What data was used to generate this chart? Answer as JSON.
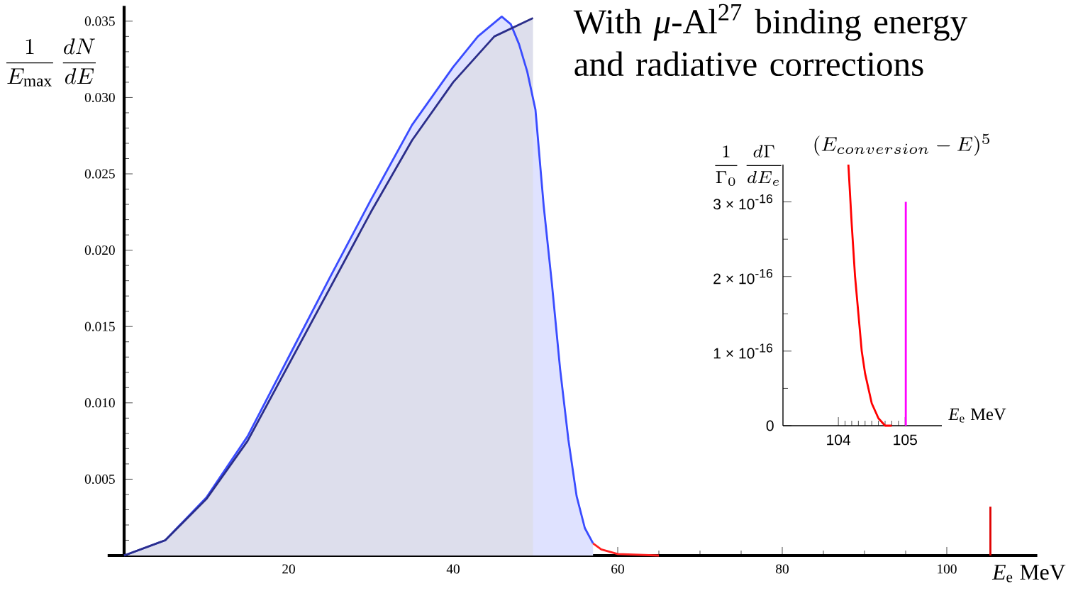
{
  "chart_data": [
    {
      "type": "line",
      "title": "With *μ*-Al$^{27}$ binding energy and radiative corrections",
      "xlabel": "*E*$_{e}$ MeV",
      "ylabel": "\\frac{1}{E_{\\mathrm{max}}}\\,\\frac{dN}{dE}",
      "xlim": [
        -2,
        111
      ],
      "ylim": [
        0,
        0.036
      ],
      "xticks": [
        20,
        40,
        60,
        80,
        100
      ],
      "yticks": [
        {
          "value": 0,
          "label": null
        },
        0.005,
        {
          "value": 0.01,
          "label": "0.010"
        },
        0.015,
        {
          "value": 0.02,
          "label": "0.020"
        },
        0.025,
        {
          "value": 0.03,
          "label": "0.030"
        },
        0.035
      ],
      "series": [
        {
          "type": "area",
          "color": "#3a4cff",
          "x": [
            0,
            5,
            10,
            15,
            20,
            25,
            30,
            35,
            40,
            43,
            45.9,
            47,
            48,
            49,
            50,
            51,
            52,
            53,
            54,
            55,
            56,
            57
          ],
          "values": [
            0,
            0.001,
            0.0038,
            0.0078,
            0.013,
            0.0182,
            0.0233,
            0.0282,
            0.032,
            0.034,
            0.0353,
            0.0348,
            0.0335,
            0.0317,
            0.0292,
            0.0229,
            0.0178,
            0.0122,
            0.0076,
            0.0039,
            0.0018,
            0.0008
          ]
        },
        {
          "type": "area",
          "color": "#2b2e8a",
          "x": [
            0,
            5,
            10,
            15,
            20,
            25,
            30,
            35,
            40,
            45,
            49.7
          ],
          "values": [
            0,
            0.001,
            0.0037,
            0.0075,
            0.0125,
            0.0175,
            0.0225,
            0.0272,
            0.031,
            0.034,
            0.0352
          ]
        },
        {
          "color": "#ff2020",
          "x": [
            57,
            58,
            60,
            65
          ],
          "values": [
            0.0008,
            0.0004,
            0.0001,
            0
          ]
        },
        {
          "color": "#e00000",
          "x": [
            105.3,
            105.3
          ],
          "values": [
            0,
            0.0032
          ]
        }
      ]
    },
    {
      "type": "line",
      "xlabel": "*E*$_{e}$ MeV",
      "ylabel": "\\frac{1}{\\Gamma_0}\\,\\frac{d\\Gamma}{dE_e}",
      "annotations": [
        "(E_{conversion}-E)^5"
      ],
      "xlim": [
        103.17,
        105.55
      ],
      "ylim": [
        0,
        3.5e-16
      ],
      "xticks": [
        104,
        105
      ],
      "yticks": [
        0,
        {
          "value": 1e-16,
          "label": "1 × 10$^{-16}$"
        },
        {
          "value": 2e-16,
          "label": "2 × 10$^{-16}$"
        },
        {
          "value": 3e-16,
          "label": "3 × 10$^{-16}$"
        }
      ],
      "series": [
        {
          "color": "#ff0000",
          "x": [
            104.15,
            104.2,
            104.25,
            104.3,
            104.35,
            104.4,
            104.5,
            104.6,
            104.7,
            104.8
          ],
          "values": [
            3.5e-16,
            2.7e-16,
            2e-16,
            1.5e-16,
            1e-16,
            7e-17,
            3e-17,
            1e-17,
            0,
            0
          ]
        },
        {
          "color": "#ff00ff",
          "x": [
            105.01,
            105.01
          ],
          "values": [
            0,
            3e-16
          ]
        }
      ]
    }
  ]
}
